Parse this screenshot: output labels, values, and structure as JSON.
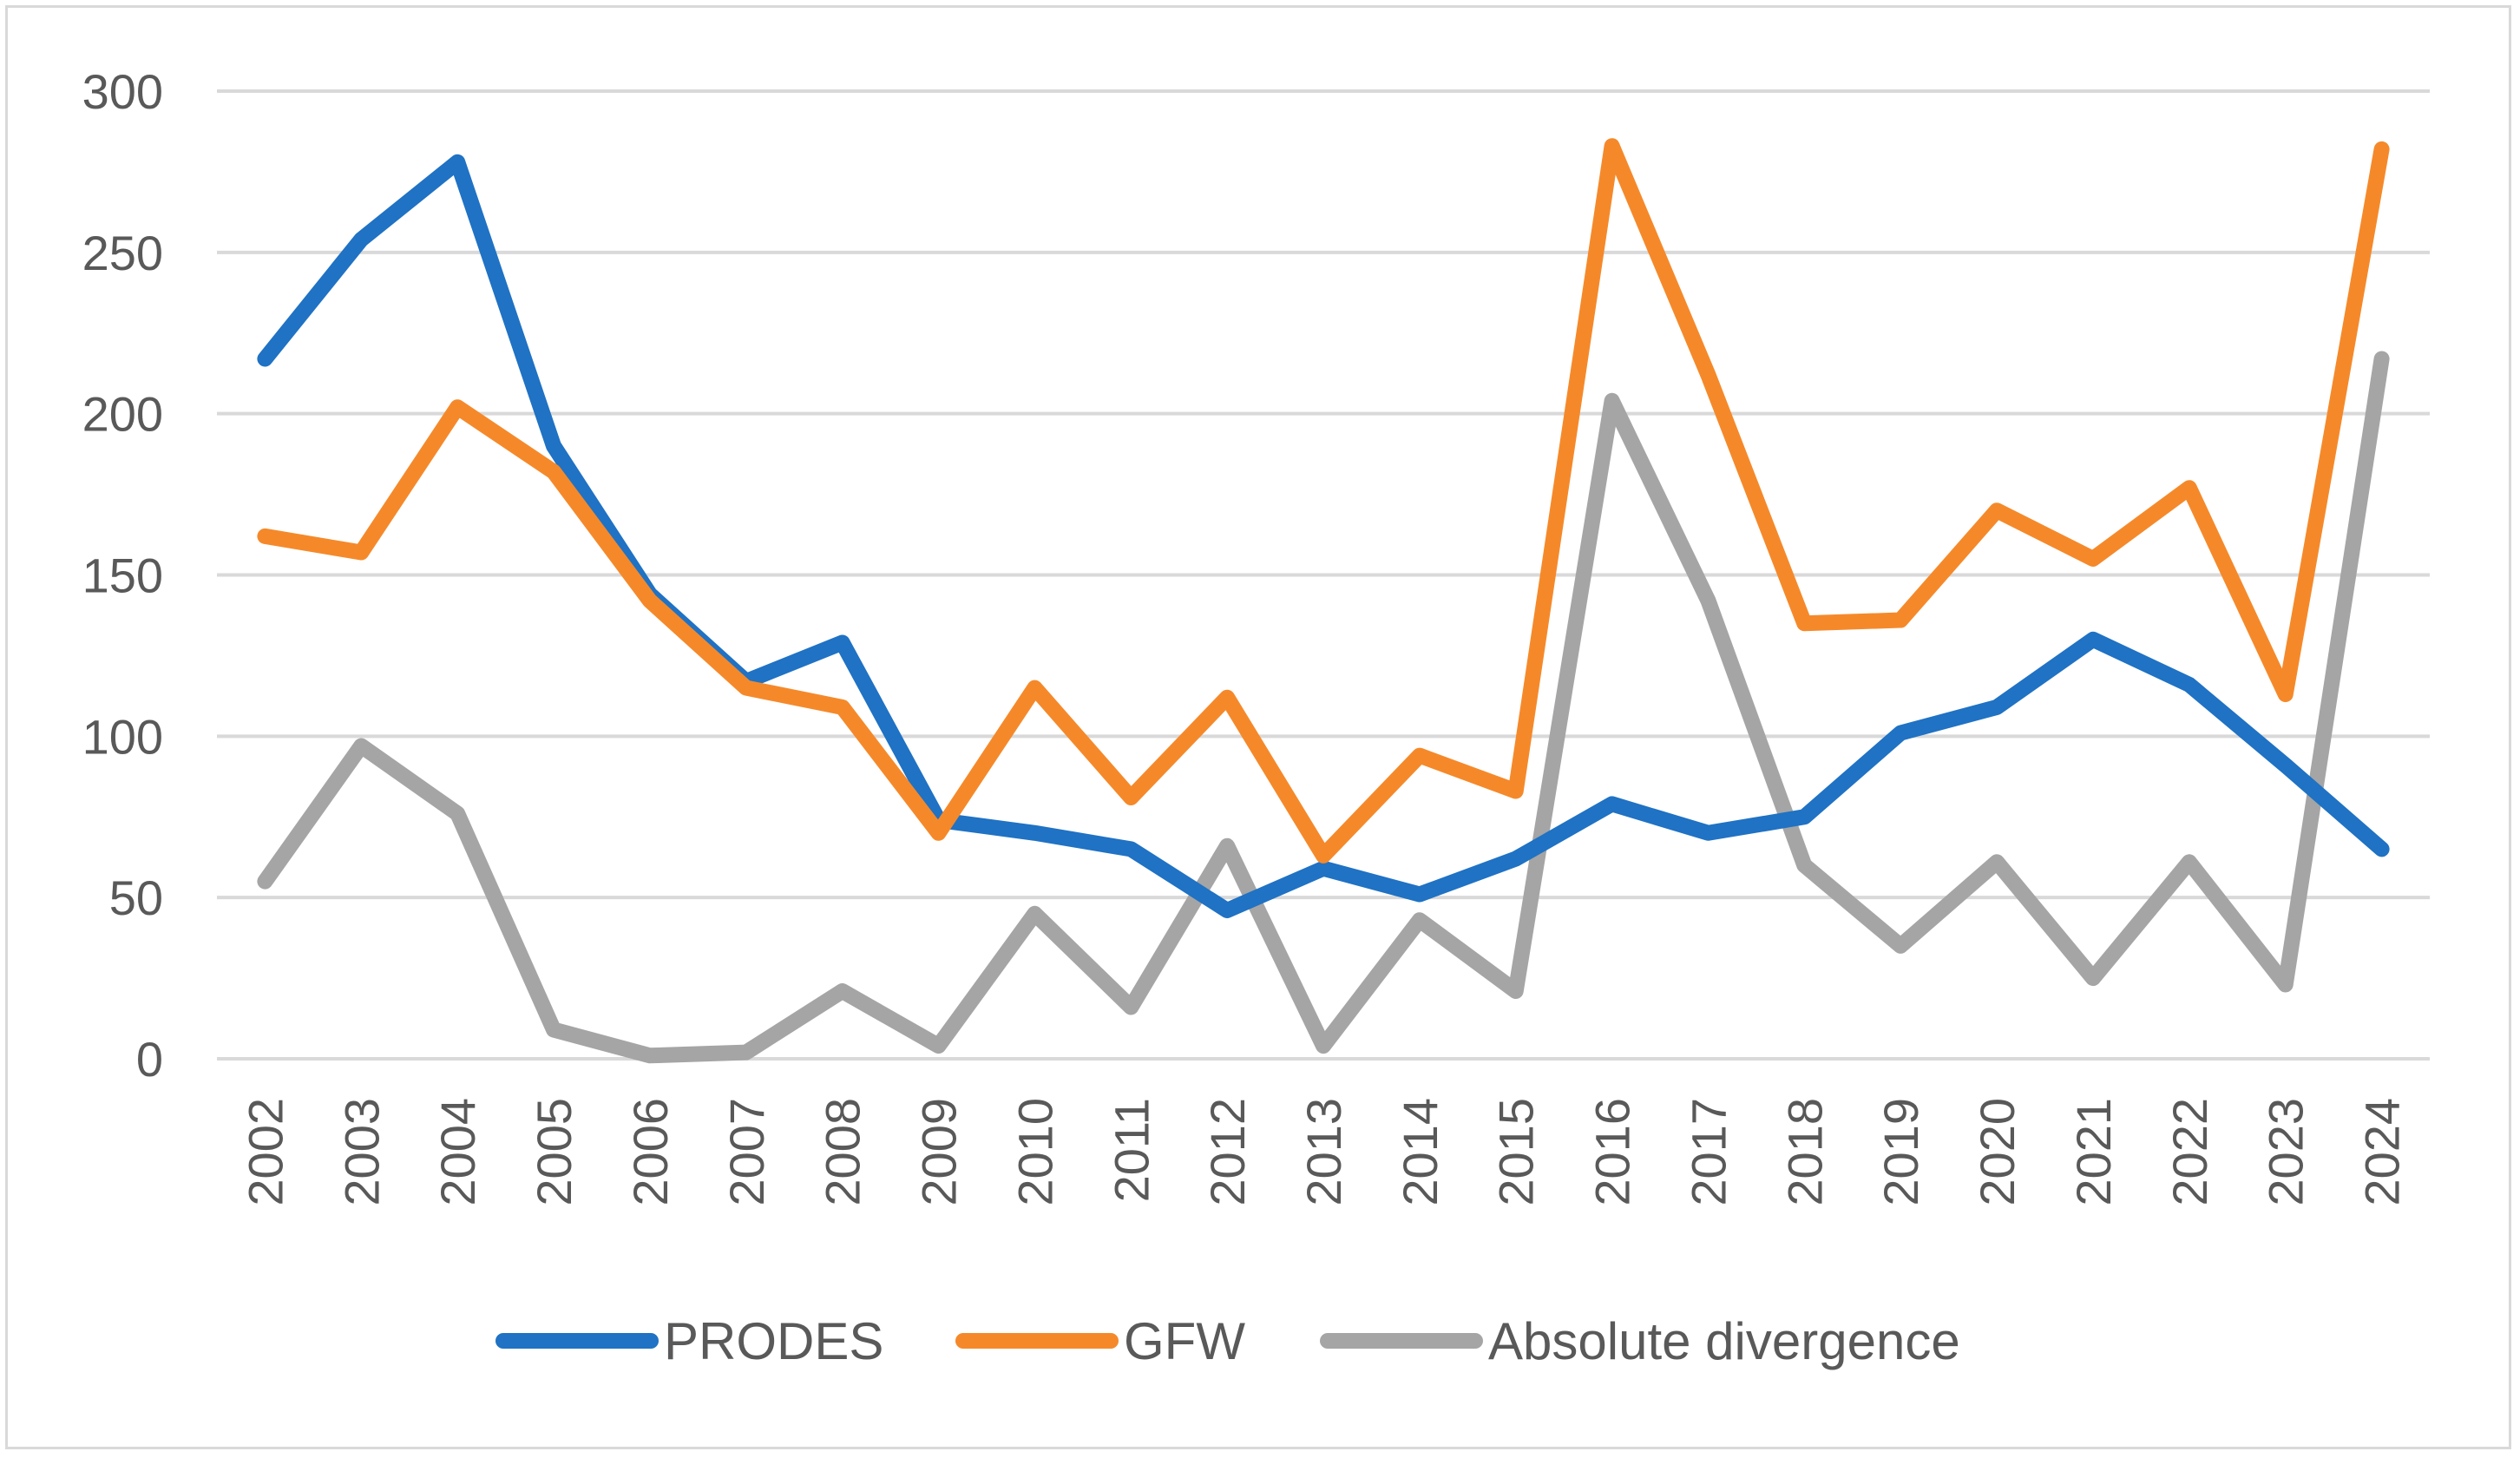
{
  "chart_data": {
    "type": "line",
    "title": "",
    "xlabel": "",
    "ylabel": "",
    "ylim": [
      0,
      300
    ],
    "yticks": [
      "0",
      "50",
      "100",
      "150",
      "200",
      "250",
      "300"
    ],
    "grid": true,
    "legend_position": "bottom",
    "x": [
      "2002",
      "2003",
      "2004",
      "2005",
      "2006",
      "2007",
      "2008",
      "2009",
      "2010",
      "2011",
      "2012",
      "2013",
      "2014",
      "2015",
      "2016",
      "2017",
      "2018",
      "2019",
      "2020",
      "2021",
      "2022",
      "2023",
      "2024"
    ],
    "series": [
      {
        "name": "PRODES",
        "color": "#1f72c4",
        "values": [
          217,
          254,
          278,
          190,
          144,
          117,
          129,
          74,
          70,
          65,
          46,
          59,
          51,
          62,
          79,
          70,
          75,
          101,
          109,
          130,
          116,
          91,
          65
        ]
      },
      {
        "name": "GFW",
        "color": "#f5892a",
        "values": [
          162,
          157,
          202,
          182,
          142,
          115,
          109,
          70,
          115,
          81,
          112,
          63,
          94,
          83,
          283,
          212,
          135,
          136,
          170,
          155,
          177,
          113,
          282
        ]
      },
      {
        "name": "Absolute divergence",
        "color": "#a5a5a5",
        "values": [
          55,
          97,
          76,
          9,
          1,
          2,
          21,
          4,
          45,
          16,
          66,
          4,
          43,
          21,
          204,
          142,
          60,
          35,
          61,
          25,
          61,
          23,
          217
        ]
      }
    ]
  }
}
